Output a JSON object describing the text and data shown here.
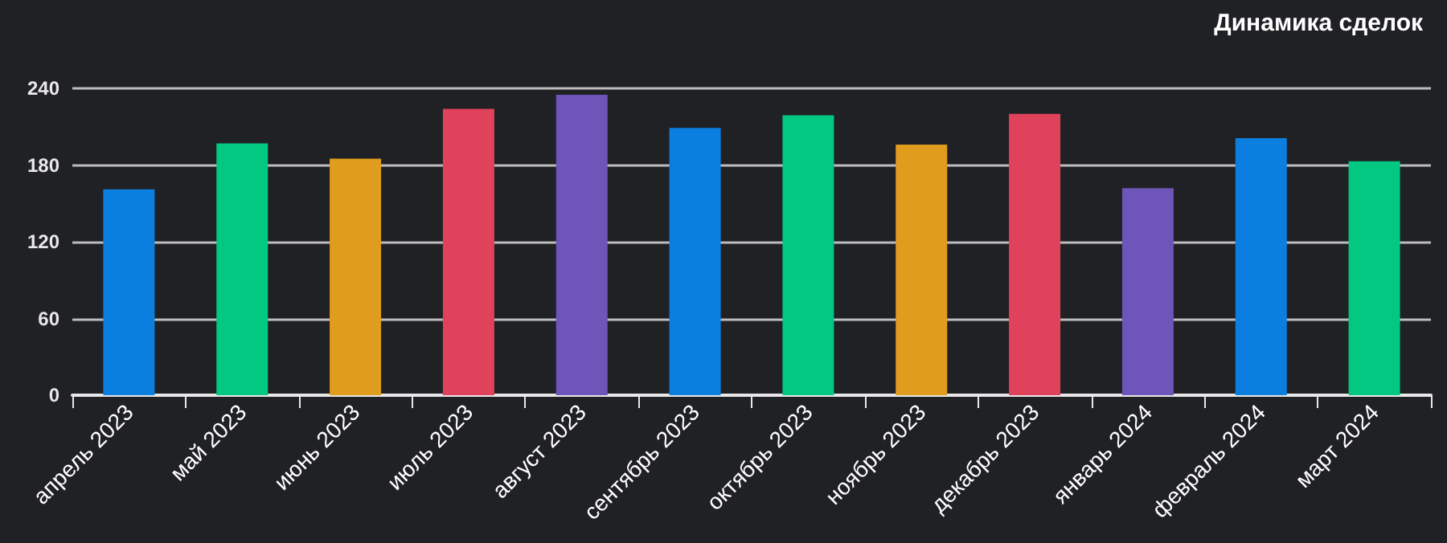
{
  "chart_data": {
    "type": "bar",
    "title": "Динамика сделок",
    "categories": [
      "апрель 2023",
      "май 2023",
      "июнь 2023",
      "июль 2023",
      "август 2023",
      "сентябрь 2023",
      "октябрь 2023",
      "ноябрь 2023",
      "декабрь 2023",
      "январь 2024",
      "февраль 2024",
      "март 2024"
    ],
    "values": [
      161,
      197,
      185,
      224,
      235,
      209,
      219,
      196,
      220,
      162,
      201,
      183
    ],
    "colors": [
      "#0b7fe0",
      "#02c882",
      "#e09c1c",
      "#e0415b",
      "#6e55b9",
      "#0b7fe0",
      "#02c882",
      "#e09c1c",
      "#e0415b",
      "#6e55b9",
      "#0b7fe0",
      "#02c882"
    ],
    "ylim": [
      0,
      240
    ],
    "yticks": [
      0,
      60,
      120,
      180,
      240
    ],
    "grid": "y"
  }
}
